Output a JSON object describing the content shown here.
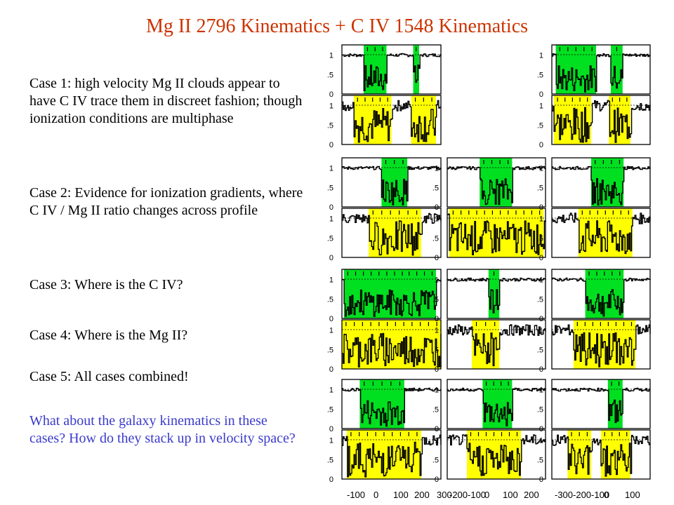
{
  "slide": {
    "title": "Mg II 2796 Kinematics + C IV 1548 Kinematics",
    "cases": [
      {
        "text": "Case 1: high velocity Mg II clouds appear to have C IV trace them in discreet fashion; though ionization conditions are multiphase"
      },
      {
        "text": "Case 2: Evidence for ionization gradients, where C IV / Mg II ratio changes across profile"
      },
      {
        "text": "Case 3: Where is the C IV?"
      },
      {
        "text": "Case 4: Where is the Mg II?"
      },
      {
        "text": "Case 5: All cases combined!"
      }
    ],
    "question": "What about the galaxy kinematics in these cases?  How do they stack up in velocity space?"
  },
  "colors": {
    "title": "#cc3300",
    "question": "#3a3acc",
    "mgii_shade": "#00e020",
    "civ_shade": "#ffff00"
  },
  "chart_data": {
    "type": "line",
    "description_y_ticks": [
      "1",
      ".5",
      "0"
    ],
    "x_axis_groups": [
      {
        "ticks": [
          "-100",
          "0",
          "100",
          "200",
          "300"
        ]
      },
      {
        "ticks": [
          "-200-100",
          "0",
          "100",
          "200"
        ]
      },
      {
        "ticks": [
          "-300-200-100",
          "0",
          "100"
        ]
      }
    ],
    "ylim": [
      0,
      1.2
    ],
    "rows": [
      {
        "panels": [
          1,
          0,
          1
        ]
      },
      {
        "panels": [
          1,
          1,
          1
        ]
      },
      {
        "panels": [
          1,
          1,
          1
        ]
      },
      {
        "panels": [
          1,
          1,
          1
        ]
      }
    ]
  }
}
